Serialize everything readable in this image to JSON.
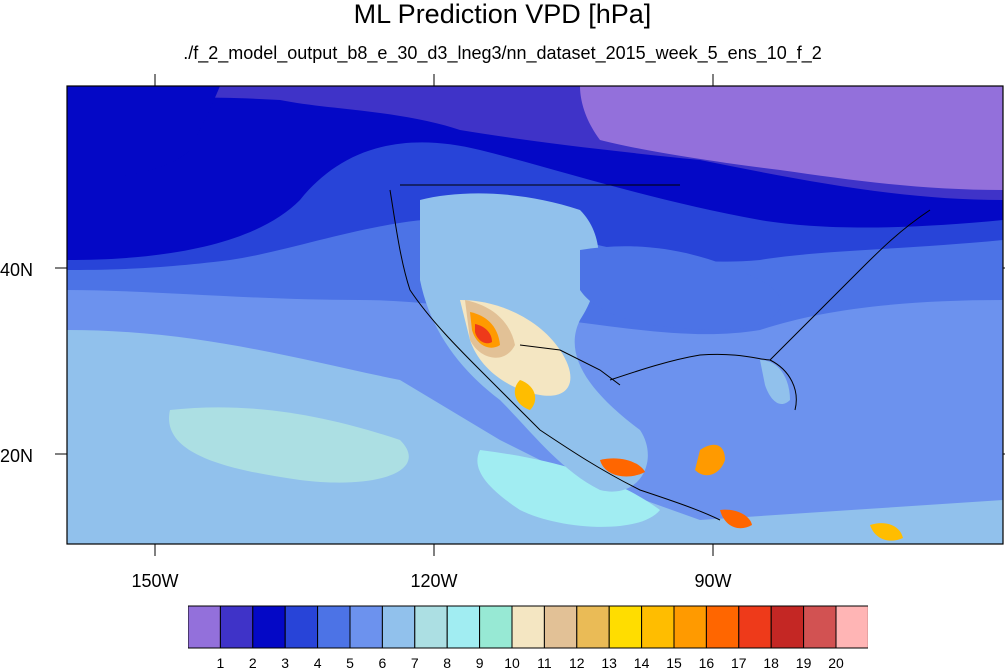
{
  "title": "ML Prediction VPD [hPa]",
  "subtitle": "./f_2_model_output_b8_e_30_d3_lneg3/nn_dataset_2015_week_5_ens_10_f_2",
  "lat_labels": [
    "40N",
    "20N"
  ],
  "lon_labels": [
    "150W",
    "120W",
    "90W"
  ],
  "colorbar": {
    "labels": [
      "1",
      "2",
      "3",
      "4",
      "5",
      "6",
      "7",
      "8",
      "9",
      "10",
      "11",
      "12",
      "13",
      "14",
      "15",
      "16",
      "17",
      "18",
      "19",
      "20"
    ],
    "colors": [
      "#9370db",
      "#3f33c8",
      "#0408c6",
      "#2844d8",
      "#4c73e6",
      "#6c92ee",
      "#91c1ec",
      "#acdfe3",
      "#a1edf2",
      "#97e9d4",
      "#f4e6c2",
      "#e2c196",
      "#eabb56",
      "#ffdd00",
      "#ffbd00",
      "#ff9a00",
      "#ff6600",
      "#ee3a1a",
      "#c42724",
      "#d25252",
      "#ffb5b5"
    ]
  }
}
